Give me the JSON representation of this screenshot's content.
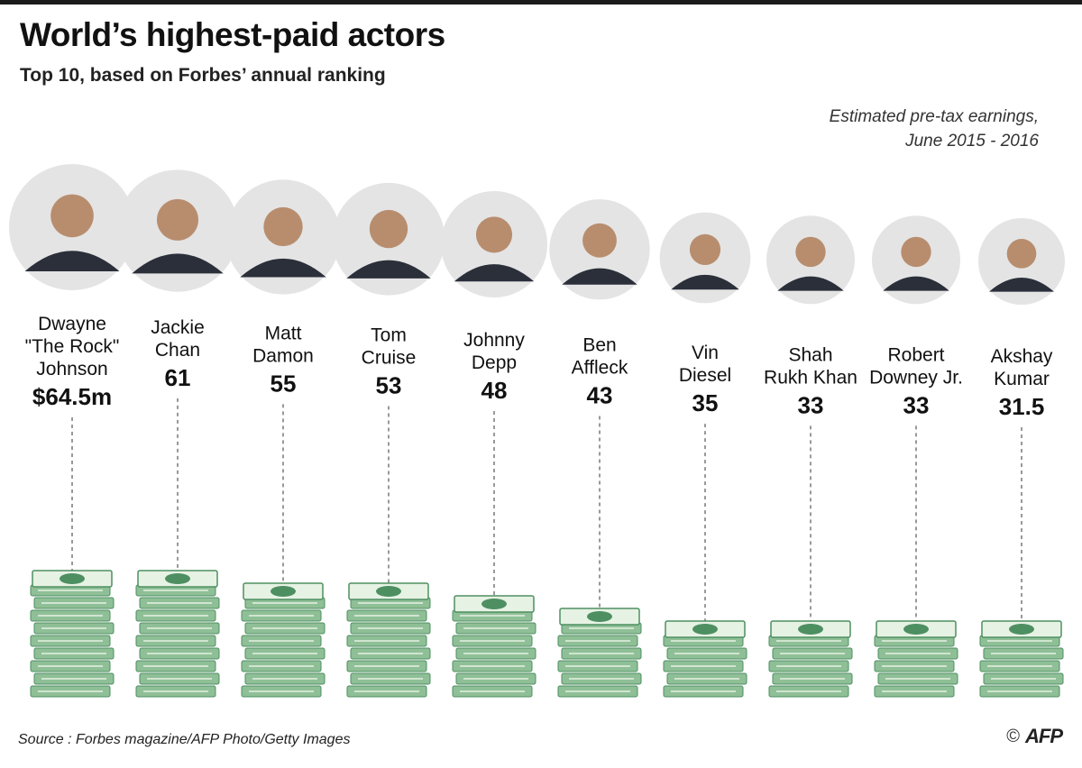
{
  "header": {
    "title": "World’s highest-paid actors",
    "subtitle": "Top 10, based on Forbes’ annual ranking"
  },
  "note": {
    "line1": "Estimated pre-tax earnings,",
    "line2": "June 2015 - 2016"
  },
  "footer": {
    "source": "Source : Forbes magazine/AFP Photo/Getty Images",
    "copyright": "©",
    "logo": "AFP"
  },
  "colors": {
    "bill": "#8fbf96",
    "bill_dark": "#4e8f62",
    "bill_light": "#e6f2e3",
    "text": "#111111"
  },
  "chart_data": {
    "type": "bar",
    "title": "World’s highest-paid actors",
    "subtitle": "Top 10, based on Forbes’ annual ranking",
    "unit": "$ millions",
    "categories": [
      "Dwayne \"The Rock\" Johnson",
      "Jackie Chan",
      "Matt Damon",
      "Tom Cruise",
      "Johnny Depp",
      "Ben Affleck",
      "Vin Diesel",
      "Shah Rukh Khan",
      "Robert Downey Jr.",
      "Akshay Kumar"
    ],
    "values": [
      64.5,
      61,
      55,
      53,
      48,
      43,
      35,
      33,
      33,
      31.5
    ],
    "name_lines": [
      [
        "Dwayne",
        "\"The Rock\"",
        "Johnson"
      ],
      [
        "Jackie",
        "Chan"
      ],
      [
        "Matt",
        "Damon"
      ],
      [
        "Tom",
        "Cruise"
      ],
      [
        "Johnny",
        "Depp"
      ],
      [
        "Ben",
        "Affleck"
      ],
      [
        "Vin",
        "Diesel"
      ],
      [
        "Shah",
        "Rukh Khan"
      ],
      [
        "Robert",
        "Downey Jr."
      ],
      [
        "Akshay",
        "Kumar"
      ]
    ],
    "value_labels": [
      "$64.5m",
      "61",
      "55",
      "53",
      "48",
      "43",
      "35",
      "33",
      "33",
      "31.5"
    ],
    "legend": "none",
    "grid": false
  }
}
